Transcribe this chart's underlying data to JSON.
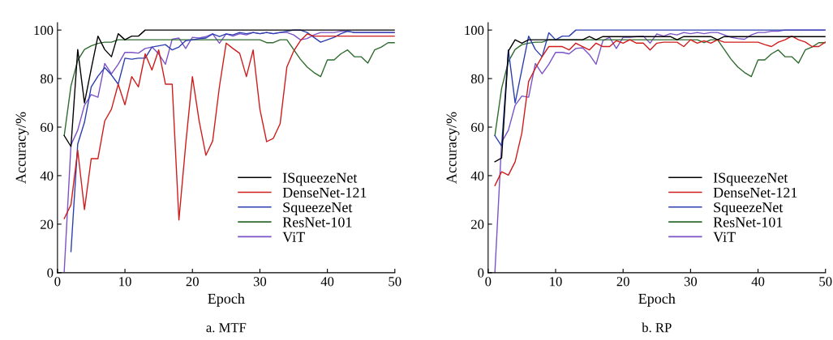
{
  "chart_data": [
    {
      "type": "line",
      "title": "a. MTF",
      "xlabel": "Epoch",
      "ylabel": "Accuracy/%",
      "xlim": [
        0,
        50
      ],
      "ylim": [
        0,
        103
      ],
      "xticks": [
        0,
        10,
        20,
        30,
        40,
        50
      ],
      "yticks": [
        0,
        20,
        40,
        60,
        80,
        100
      ],
      "grid": false,
      "legend": "bottom right",
      "marker": "none",
      "line_style": "solid",
      "x": [
        1,
        2,
        3,
        4,
        5,
        6,
        7,
        8,
        9,
        10,
        11,
        12,
        13,
        14,
        15,
        16,
        17,
        18,
        19,
        20,
        21,
        22,
        23,
        24,
        25,
        26,
        27,
        28,
        29,
        30,
        31,
        32,
        33,
        34,
        35,
        36,
        37,
        38,
        39,
        40,
        41,
        42,
        43,
        44,
        45,
        46,
        47,
        48,
        49,
        50
      ],
      "series": [
        {
          "name": "ISqueezeNet",
          "color": "#000000",
          "values": [
            56.5,
            52,
            92,
            70,
            84,
            97.5,
            92,
            89,
            98.5,
            96,
            97.5,
            97.5,
            100,
            100,
            100,
            100,
            100,
            100,
            100,
            100,
            100,
            100,
            100,
            100,
            100,
            100,
            100,
            100,
            100,
            100,
            100,
            100,
            100,
            100,
            100,
            100,
            100,
            100,
            100,
            100,
            100,
            100,
            100,
            100,
            100,
            100,
            100,
            100,
            100,
            100
          ]
        },
        {
          "name": "DenseNet-121",
          "color": "#d01c1c",
          "values": [
            22.3,
            28,
            50.5,
            26,
            47,
            47,
            62.5,
            67.4,
            77.7,
            69.2,
            80.8,
            76.6,
            90.2,
            83.5,
            91.8,
            77.7,
            77.7,
            21.7,
            52.7,
            80.8,
            62.5,
            48.4,
            54.3,
            76.6,
            94.6,
            92.4,
            90.4,
            80.8,
            91.8,
            67.4,
            54,
            55.4,
            61.4,
            84.8,
            91.3,
            95.6,
            98.4,
            97.5,
            97.5,
            97.5,
            97.5,
            97.5,
            97.5,
            97.5,
            97.5,
            97.5,
            97.5,
            97.5,
            97.5,
            97.5
          ]
        },
        {
          "name": "SqueezeNet",
          "color": "#2b3fb0",
          "values": [
            null,
            8.7,
            53,
            62,
            76.6,
            81,
            84.5,
            81.5,
            77.7,
            88.4,
            88,
            88.4,
            88.4,
            93,
            93.5,
            94,
            91.8,
            93,
            95.6,
            96,
            96.4,
            96.7,
            98.4,
            97.3,
            98.4,
            98,
            99,
            98.5,
            99,
            98.5,
            99,
            98.5,
            99,
            99.5,
            100,
            100,
            99,
            97,
            95,
            96,
            97,
            98.5,
            99.5,
            99,
            99,
            99,
            99,
            99,
            99,
            99
          ]
        },
        {
          "name": "ResNet-101",
          "color": "#2e6b2e",
          "values": [
            56.5,
            77,
            87.5,
            92,
            93.5,
            94.5,
            95,
            95,
            96,
            96,
            96,
            96,
            96,
            96,
            96,
            96,
            96,
            96,
            96,
            96,
            96,
            96,
            96,
            96,
            96,
            96,
            96,
            96,
            96,
            96,
            94.8,
            94.8,
            96,
            96,
            92,
            88,
            84.8,
            82.5,
            80.8,
            87.7,
            87.7,
            90.2,
            91.8,
            89,
            89,
            86.4,
            91.8,
            93,
            94.8,
            94.8
          ]
        },
        {
          "name": "ViT",
          "color": "#7b52c8",
          "values": [
            0.5,
            52.7,
            58.7,
            69,
            73.4,
            72.3,
            86.2,
            82,
            85.9,
            90.8,
            90.8,
            90.5,
            92.4,
            93,
            90.2,
            85.9,
            96.2,
            96.7,
            92.4,
            97,
            96.7,
            97.3,
            98.4,
            94.6,
            98.4,
            97.5,
            98.5,
            98,
            99,
            98.5,
            99,
            98.5,
            99,
            99,
            98,
            96,
            96.5,
            98,
            99,
            99,
            99,
            99.5,
            99.5,
            99,
            99,
            99,
            99,
            99,
            99,
            99
          ]
        }
      ]
    },
    {
      "type": "line",
      "title": "b. RP",
      "xlabel": "Epoch",
      "ylabel": "Accuracy/%",
      "xlim": [
        0,
        50
      ],
      "ylim": [
        0,
        103
      ],
      "xticks": [
        0,
        10,
        20,
        30,
        40,
        50
      ],
      "yticks": [
        0,
        20,
        40,
        60,
        80,
        100
      ],
      "grid": false,
      "legend": "bottom right",
      "marker": "none",
      "line_style": "solid",
      "x": [
        1,
        2,
        3,
        4,
        5,
        6,
        7,
        8,
        9,
        10,
        11,
        12,
        13,
        14,
        15,
        16,
        17,
        18,
        19,
        20,
        21,
        22,
        23,
        24,
        25,
        26,
        27,
        28,
        29,
        30,
        31,
        32,
        33,
        34,
        35,
        36,
        37,
        38,
        39,
        40,
        41,
        42,
        43,
        44,
        45,
        46,
        47,
        48,
        49,
        50
      ],
      "series": [
        {
          "name": "ISqueezeNet",
          "color": "#000000",
          "values": [
            45.7,
            47.3,
            91.3,
            96,
            94.6,
            96,
            96,
            96,
            96,
            96,
            96,
            96,
            96,
            96,
            97.3,
            96,
            97.3,
            97.3,
            97.3,
            97.3,
            97.3,
            97.3,
            97.3,
            97.3,
            97.3,
            97.3,
            97.3,
            96,
            97.3,
            97.3,
            97.3,
            97.3,
            97.3,
            96,
            97.3,
            97.3,
            97.3,
            97.3,
            97.3,
            97.3,
            97.3,
            97.3,
            97.3,
            97.3,
            97.3,
            97.3,
            97.3,
            97.3,
            97.3,
            97.3
          ]
        },
        {
          "name": "DenseNet-121",
          "color": "#d01c1c",
          "values": [
            35.9,
            41.6,
            40.2,
            45.7,
            57.6,
            78.8,
            84.2,
            89.1,
            93.2,
            93.2,
            93.2,
            91.8,
            94.6,
            93.2,
            91.8,
            94.6,
            93.2,
            93.2,
            95.6,
            94.6,
            96,
            94.6,
            94.6,
            91.8,
            94.6,
            95,
            95,
            95,
            93.2,
            96,
            94.6,
            95.6,
            94.6,
            96,
            95,
            95,
            95,
            95,
            95,
            95,
            94,
            93.2,
            95,
            96,
            97.5,
            96,
            95.1,
            93.2,
            93.2,
            95.1
          ]
        },
        {
          "name": "SqueezeNet",
          "color": "#2b3fb0",
          "values": [
            56.5,
            52.2,
            91.8,
            70,
            83.7,
            97.5,
            92,
            89,
            98.9,
            96,
            97.5,
            97.5,
            100,
            100,
            100,
            100,
            100,
            100,
            100,
            100,
            100,
            100,
            100,
            100,
            100,
            100,
            100,
            100,
            100,
            100,
            100,
            100,
            100,
            100,
            100,
            100,
            100,
            100,
            100,
            100,
            100,
            100,
            100,
            100,
            100,
            100,
            100,
            100,
            100,
            100
          ]
        },
        {
          "name": "ResNet-101",
          "color": "#2e6b2e",
          "values": [
            56.5,
            76,
            87,
            92,
            94,
            94.6,
            95,
            95,
            96,
            96,
            96,
            96,
            96,
            96,
            96,
            96,
            96,
            96,
            96,
            96,
            96,
            96,
            96,
            96,
            96,
            96,
            96,
            96,
            96,
            96,
            96,
            94.8,
            96,
            96,
            92,
            88,
            84.8,
            82.5,
            80.8,
            87.7,
            87.7,
            90.2,
            91.8,
            89,
            89,
            86.4,
            91.8,
            93,
            94.8,
            94.8
          ]
        },
        {
          "name": "ViT",
          "color": "#7b52c8",
          "values": [
            0,
            53.8,
            58.7,
            69,
            72.8,
            72.3,
            86.2,
            82,
            85.9,
            90.8,
            90.8,
            90.2,
            92.4,
            92.7,
            89.9,
            85.9,
            95.6,
            97,
            92.4,
            97,
            97,
            97.3,
            97.5,
            94.6,
            98.4,
            97.5,
            98.5,
            98,
            99,
            98.5,
            99,
            98.5,
            99,
            99,
            98,
            97,
            96.5,
            96.2,
            98,
            99,
            99,
            99.5,
            99.5,
            100,
            100,
            100,
            100,
            100,
            100,
            100
          ]
        }
      ]
    }
  ]
}
